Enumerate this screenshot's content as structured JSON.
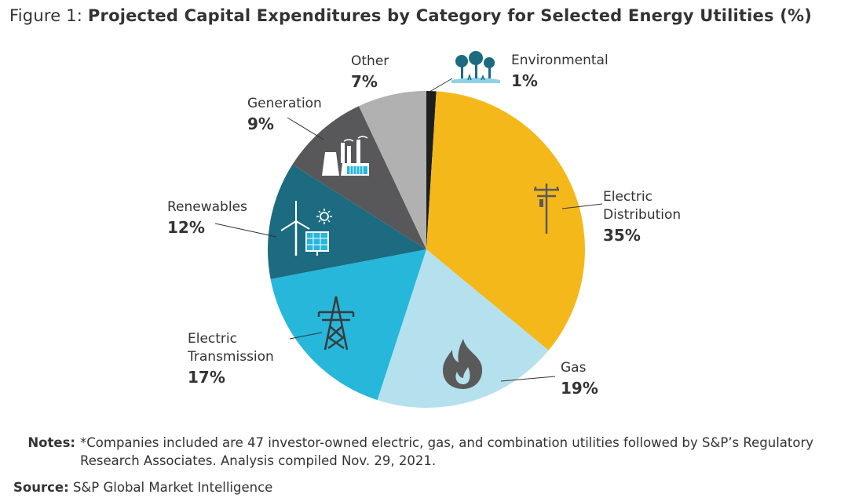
{
  "title_prefix": "Figure 1:",
  "title": "Projected Capital Expenditures by Category for Selected Energy Utilities (%)",
  "chart_data": {
    "type": "pie",
    "title": "Projected Capital Expenditures by Category for Selected Energy Utilities (%)",
    "unit": "%",
    "slices": [
      {
        "label": "Environmental",
        "value": 1,
        "value_label": "1%",
        "color": "#1e1e1e",
        "icon": "trees-icon"
      },
      {
        "label": "Electric Distribution",
        "value": 35,
        "value_label": "35%",
        "color": "#f5b81b",
        "icon": "utility-pole-icon"
      },
      {
        "label": "Gas",
        "value": 19,
        "value_label": "19%",
        "color": "#b5e1ef",
        "icon": "gas-flame-icon"
      },
      {
        "label": "Electric Transmission",
        "value": 17,
        "value_label": "17%",
        "color": "#26b7db",
        "icon": "transmission-tower-icon"
      },
      {
        "label": "Renewables",
        "value": 12,
        "value_label": "12%",
        "color": "#1c6b80",
        "icon": "wind-solar-icon"
      },
      {
        "label": "Generation",
        "value": 9,
        "value_label": "9%",
        "color": "#58585a",
        "icon": "power-plant-icon"
      },
      {
        "label": "Other",
        "value": 7,
        "value_label": "7%",
        "color": "#b1b1b1",
        "icon": ""
      }
    ]
  },
  "notes_label": "Notes:",
  "notes_text": "*Companies included are 47 investor-owned electric, gas, and combination utilities followed by S&P’s Regulatory Research Associates. Analysis compiled Nov. 29, 2021.",
  "source_label": "Source:",
  "source_text": "S&P Global Market Intelligence"
}
